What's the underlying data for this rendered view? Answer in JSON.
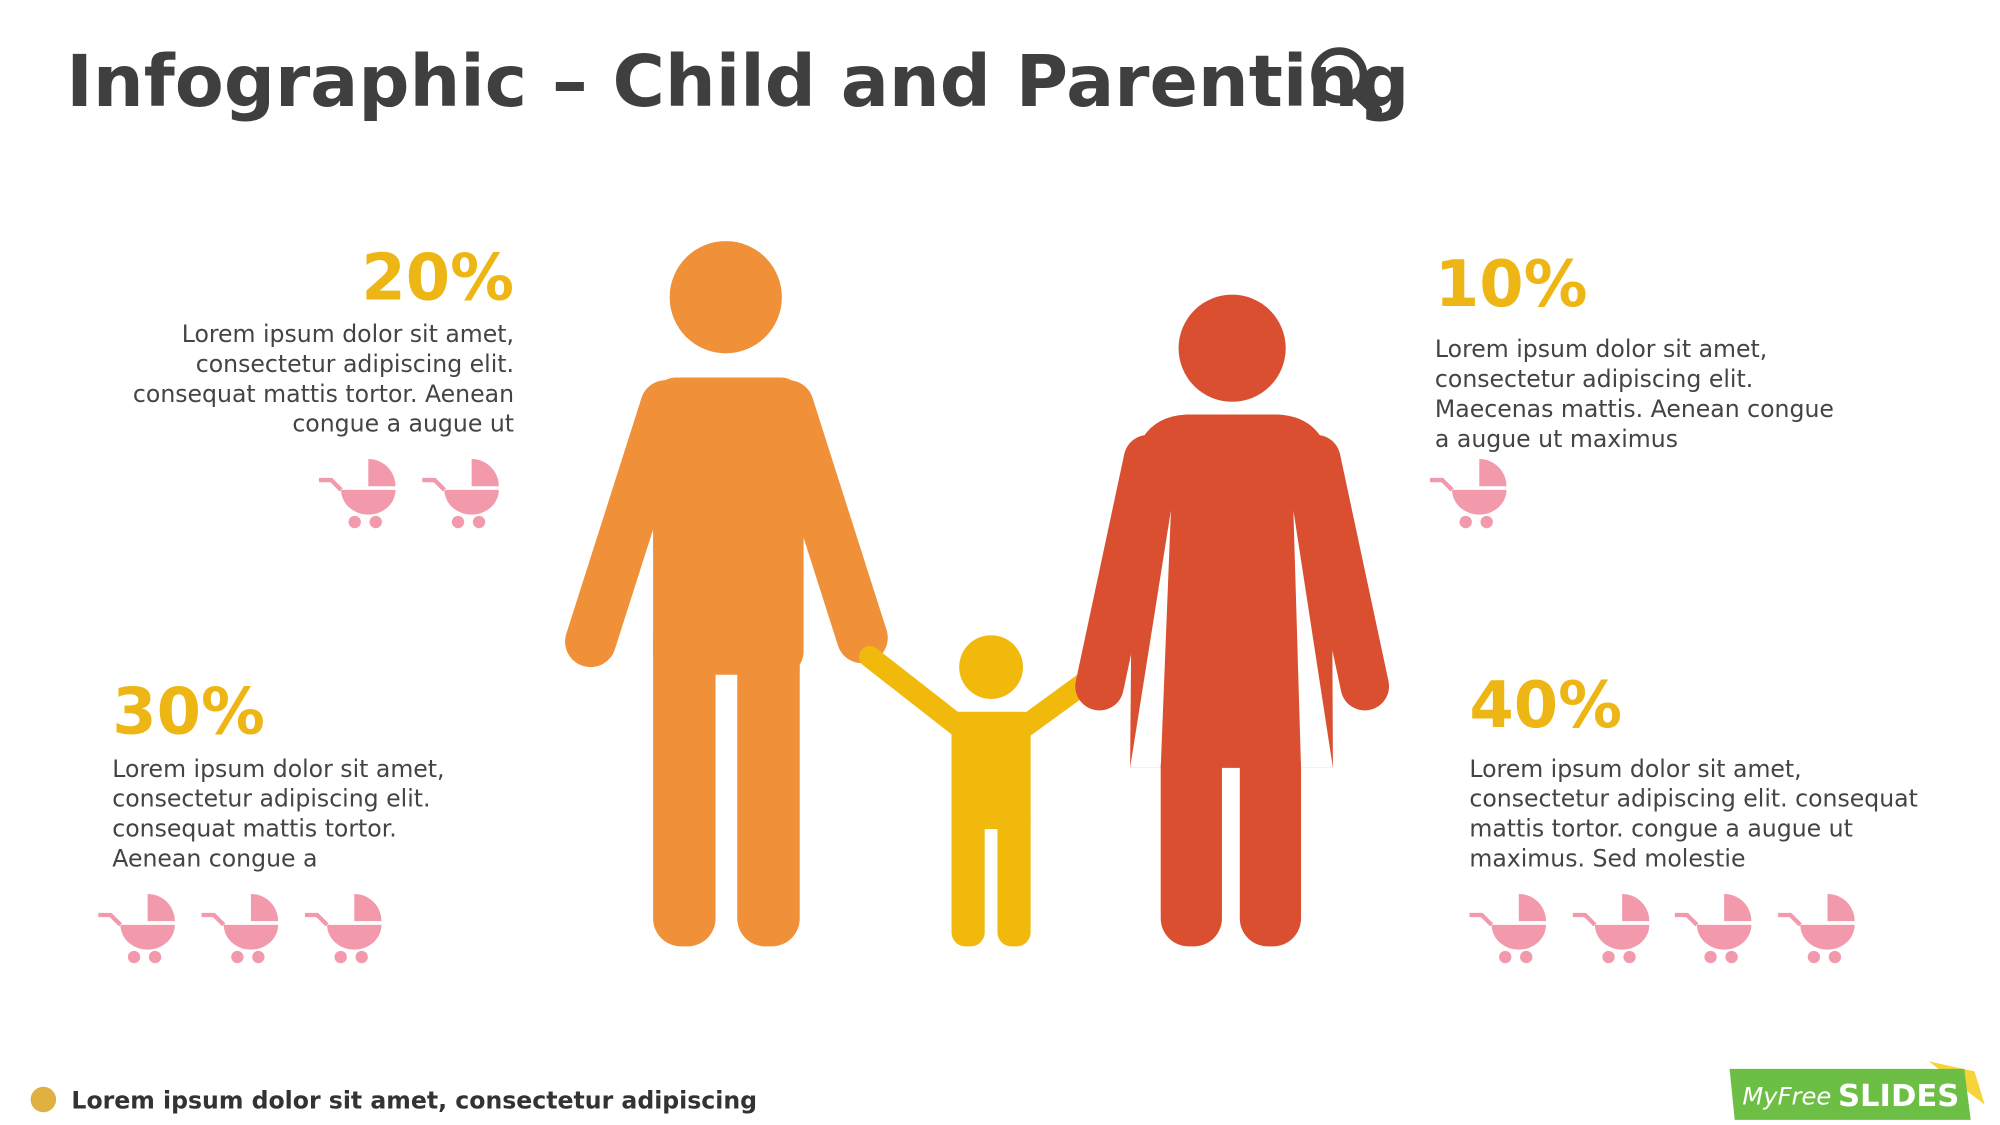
{
  "header": {
    "title": "Infographic – Child and Parenting"
  },
  "stats": [
    {
      "percent": "20%",
      "lines": [
        "Lorem ipsum dolor sit amet,",
        "consectetur adipiscing elit.",
        "consequat mattis tortor. Aenean",
        "congue a augue ut"
      ]
    },
    {
      "percent": "10%",
      "lines": [
        "Lorem ipsum dolor sit amet,",
        "consectetur adipiscing elit.",
        "Maecenas mattis. Aenean congue",
        "a augue ut maximus"
      ]
    },
    {
      "percent": "30%",
      "lines": [
        "Lorem ipsum dolor sit amet,",
        "consectetur adipiscing elit.",
        "consequat mattis tortor.",
        "Aenean congue a"
      ]
    },
    {
      "percent": "40%",
      "lines": [
        "Lorem ipsum dolor sit amet,",
        "consectetur adipiscing elit. consequat",
        "mattis tortor. congue a augue ut",
        "maximus. Sed molestie"
      ]
    }
  ],
  "footer": {
    "note": "Lorem ipsum dolor sit amet, consectetur adipiscing"
  },
  "logo": {
    "prefix": "MyFree",
    "brand": "SLIDES"
  }
}
